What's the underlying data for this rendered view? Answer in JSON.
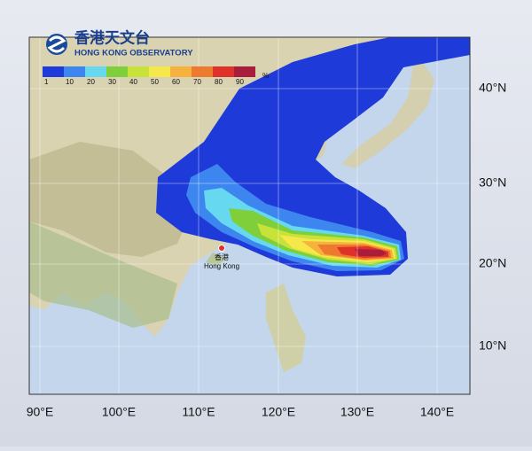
{
  "logo": {
    "name_zh": "香港天文台",
    "name_en": "HONG KONG OBSERVATORY"
  },
  "legend": {
    "labels": [
      "1",
      "10",
      "20",
      "30",
      "40",
      "50",
      "60",
      "70",
      "80",
      "90"
    ],
    "unit": "%",
    "colors": [
      "#1e3ad8",
      "#3d86f0",
      "#66d8ef",
      "#7fcf3a",
      "#c9e23a",
      "#f5e84a",
      "#f6b23c",
      "#ee7a2f",
      "#e0302a",
      "#a81c3c"
    ]
  },
  "place": {
    "name_zh": "香港",
    "name_en": "Hong Kong"
  },
  "latitude_labels": [
    "40°N",
    "30°N",
    "20°N",
    "10°N"
  ],
  "longitude_labels": [
    "90°E",
    "100°E",
    "110°E",
    "120°E",
    "130°E",
    "140°E"
  ]
}
